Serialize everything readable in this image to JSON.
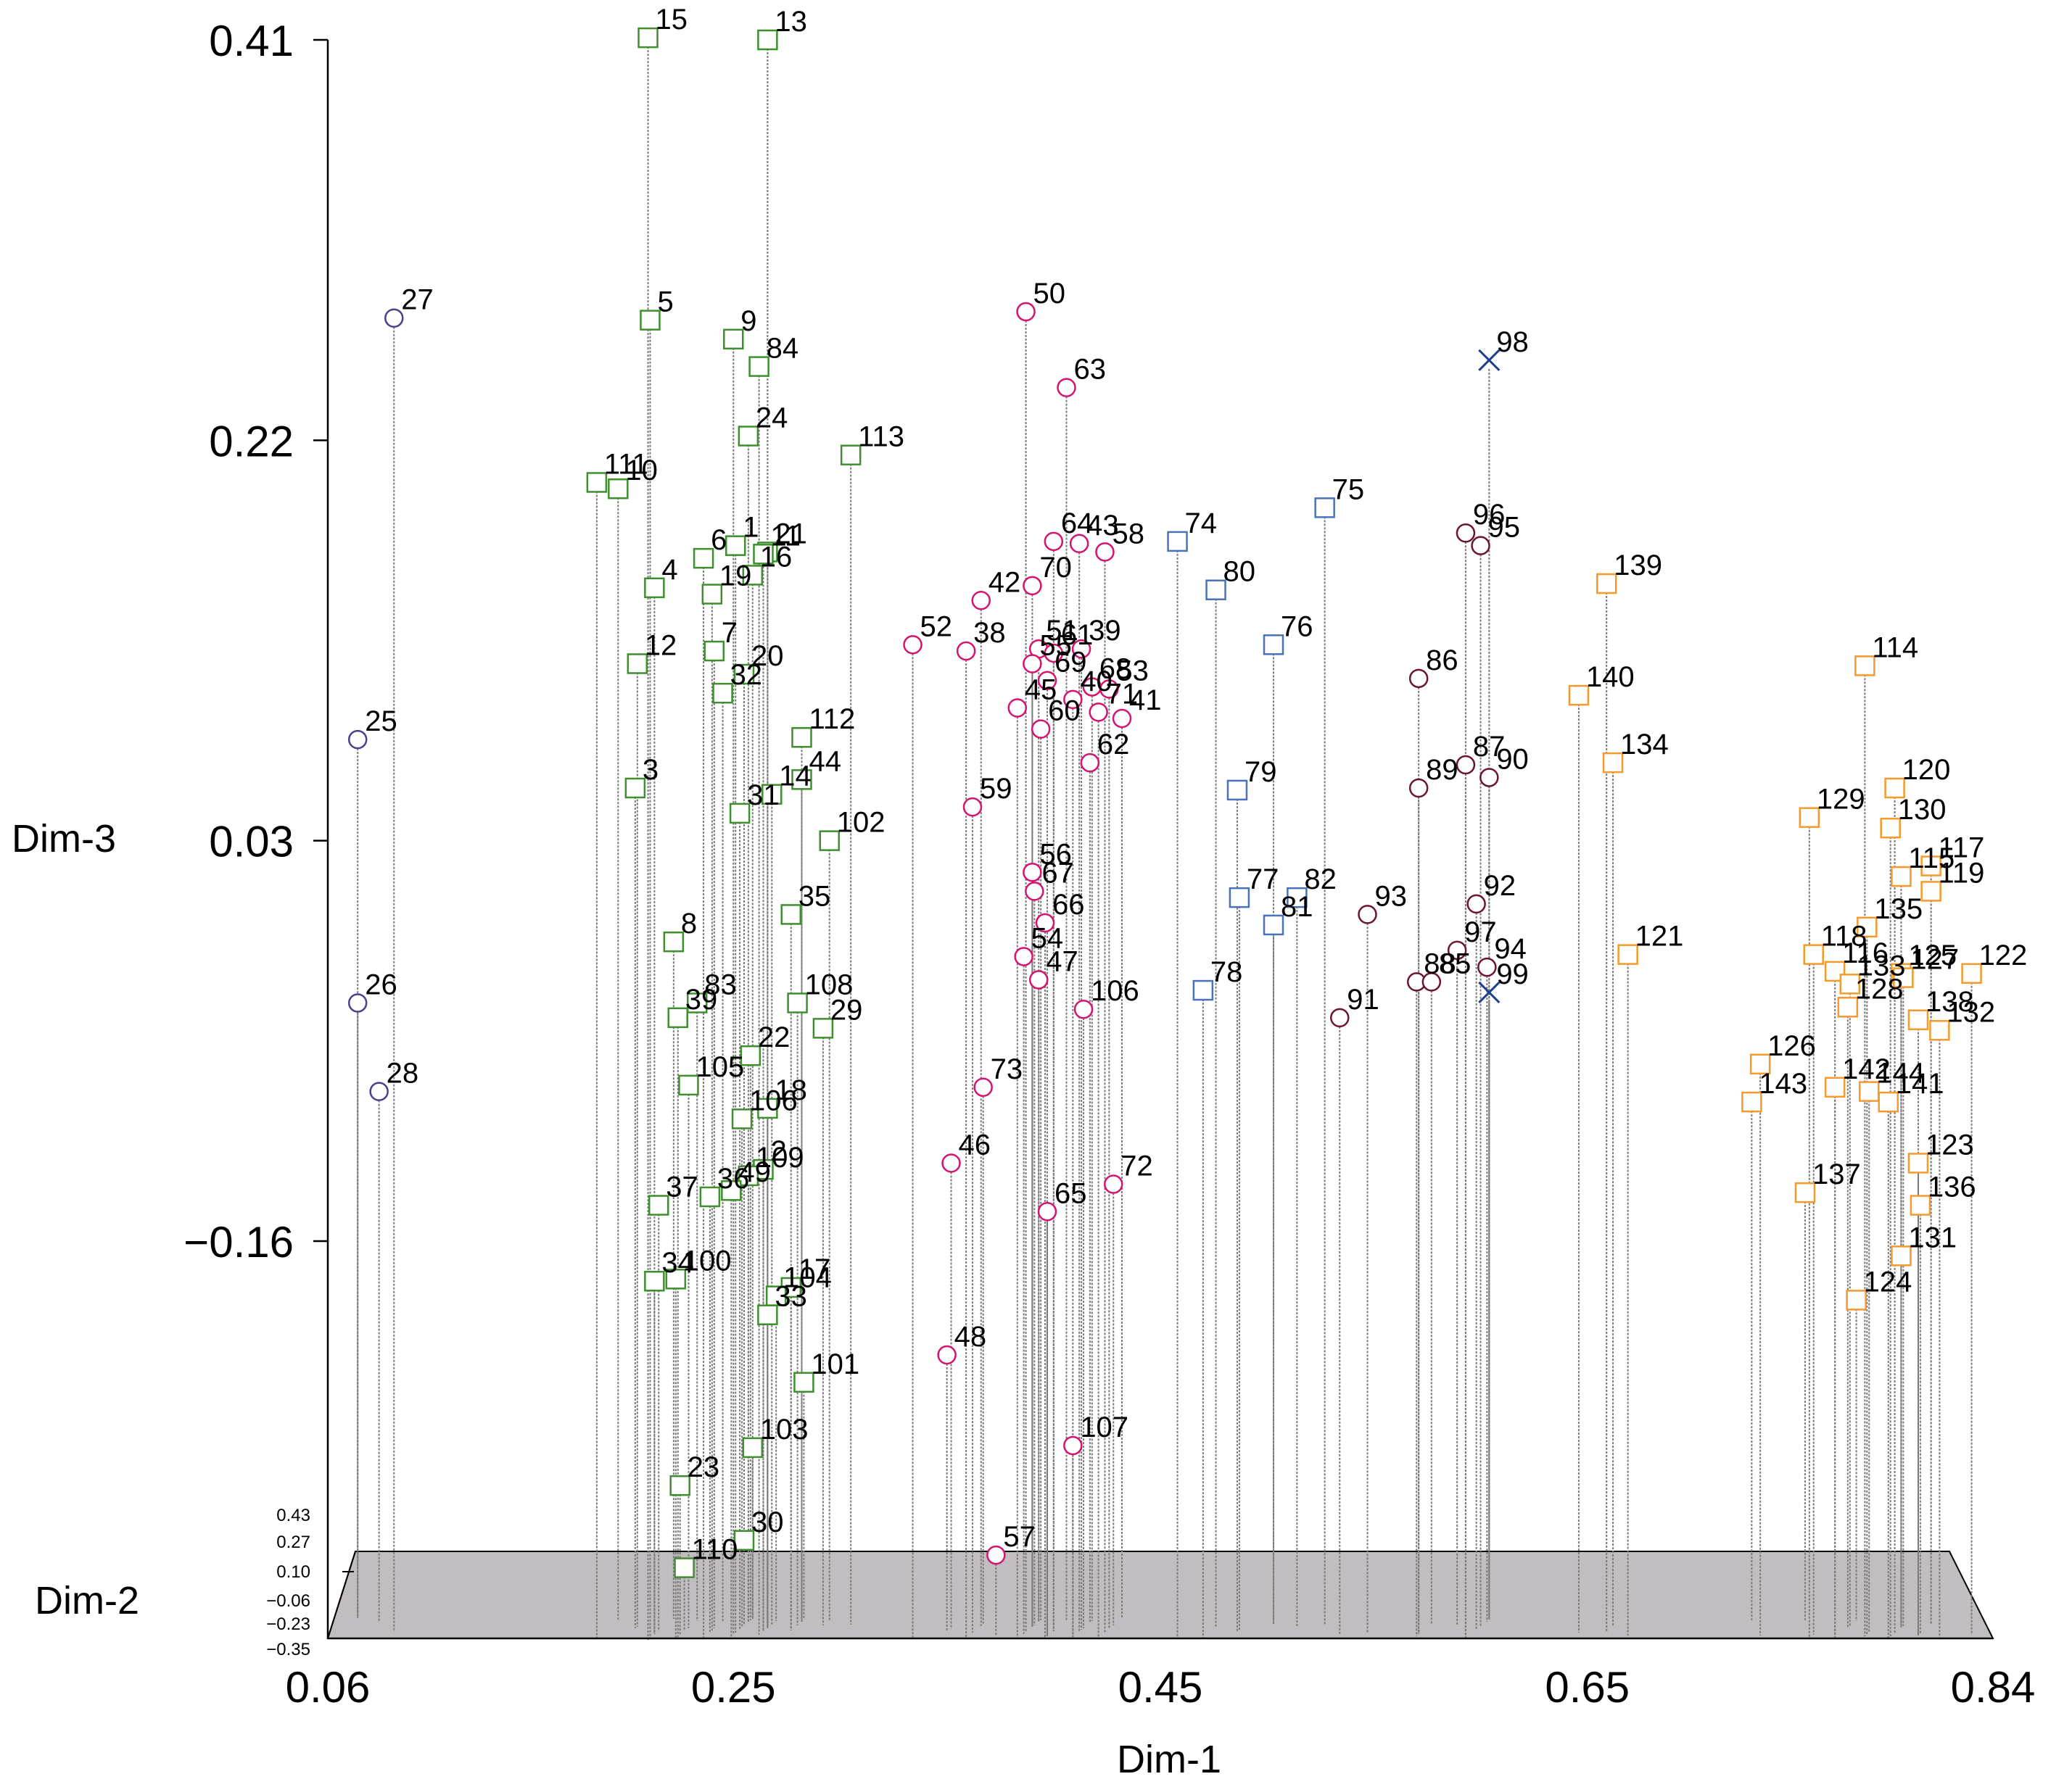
{
  "chart_data": {
    "type": "scatter",
    "subtype": "3d-scatter-with-drop-lines",
    "title": "",
    "xlabel": "Dim-1",
    "ylabel": "Dim-3",
    "zlabel": "Dim-2",
    "xlim": [
      0.06,
      0.84
    ],
    "ylim": [
      -0.35,
      0.41
    ],
    "x_ticks": [
      "0.06",
      "0.25",
      "0.45",
      "0.65",
      "0.84"
    ],
    "y_ticks": [
      "0.41",
      "0.22",
      "0.03",
      "−0.16"
    ],
    "z_ticks": [
      "0.43",
      "0.27",
      "0.10",
      "−0.06",
      "−0.23",
      "−0.35"
    ],
    "floor_color": "#c1bdc1",
    "series": [
      {
        "marker": "circle",
        "color": "#4b3f8f",
        "points": [
          {
            "label": "27",
            "x": 0.091,
            "y": 0.278,
            "z": 0.3
          },
          {
            "label": "25",
            "x": 0.074,
            "y": 0.078,
            "z": 0.3
          },
          {
            "label": "26",
            "x": 0.074,
            "y": -0.047,
            "z": 0.3
          },
          {
            "label": "28",
            "x": 0.084,
            "y": -0.089,
            "z": 0.3
          }
        ]
      },
      {
        "marker": "square",
        "color": "#3f8f2f",
        "points": [
          {
            "label": "15",
            "x": 0.21,
            "y": 0.411,
            "z": 0.1
          },
          {
            "label": "13",
            "x": 0.266,
            "y": 0.41,
            "z": 0.1
          },
          {
            "label": "5",
            "x": 0.211,
            "y": 0.277,
            "z": 0.1
          },
          {
            "label": "9",
            "x": 0.25,
            "y": 0.268,
            "z": 0.1
          },
          {
            "label": "84",
            "x": 0.262,
            "y": 0.255,
            "z": 0.1
          },
          {
            "label": "24",
            "x": 0.257,
            "y": 0.222,
            "z": 0.1
          },
          {
            "label": "113",
            "x": 0.305,
            "y": 0.213,
            "z": 0.1
          },
          {
            "label": "111",
            "x": 0.186,
            "y": 0.2,
            "z": 0.1
          },
          {
            "label": "10",
            "x": 0.196,
            "y": 0.197,
            "z": 0.1
          },
          {
            "label": "6",
            "x": 0.236,
            "y": 0.164,
            "z": 0.1
          },
          {
            "label": "1",
            "x": 0.251,
            "y": 0.17,
            "z": 0.1
          },
          {
            "label": "21",
            "x": 0.266,
            "y": 0.167,
            "z": 0.1
          },
          {
            "label": "11",
            "x": 0.264,
            "y": 0.166,
            "z": 0.1
          },
          {
            "label": "4",
            "x": 0.213,
            "y": 0.15,
            "z": 0.1
          },
          {
            "label": "19",
            "x": 0.24,
            "y": 0.147,
            "z": 0.1
          },
          {
            "label": "16",
            "x": 0.259,
            "y": 0.156,
            "z": 0.1
          },
          {
            "label": "7",
            "x": 0.241,
            "y": 0.12,
            "z": 0.1
          },
          {
            "label": "12",
            "x": 0.205,
            "y": 0.114,
            "z": 0.1
          },
          {
            "label": "20",
            "x": 0.255,
            "y": 0.109,
            "z": 0.1
          },
          {
            "label": "32",
            "x": 0.245,
            "y": 0.1,
            "z": 0.1
          },
          {
            "label": "112",
            "x": 0.282,
            "y": 0.079,
            "z": 0.1
          },
          {
            "label": "3",
            "x": 0.204,
            "y": 0.055,
            "z": 0.1
          },
          {
            "label": "14",
            "x": 0.268,
            "y": 0.052,
            "z": 0.1
          },
          {
            "label": "44",
            "x": 0.282,
            "y": 0.059,
            "z": 0.1
          },
          {
            "label": "31",
            "x": 0.253,
            "y": 0.043,
            "z": 0.1
          },
          {
            "label": "102",
            "x": 0.295,
            "y": 0.03,
            "z": 0.1
          },
          {
            "label": "35",
            "x": 0.277,
            "y": -0.005,
            "z": 0.1
          },
          {
            "label": "8",
            "x": 0.222,
            "y": -0.018,
            "z": 0.1
          },
          {
            "label": "83",
            "x": 0.233,
            "y": -0.047,
            "z": 0.1
          },
          {
            "label": "39",
            "x": 0.224,
            "y": -0.054,
            "z": 0.1
          },
          {
            "label": "108",
            "x": 0.28,
            "y": -0.047,
            "z": 0.1
          },
          {
            "label": "29",
            "x": 0.292,
            "y": -0.059,
            "z": 0.1
          },
          {
            "label": "22",
            "x": 0.258,
            "y": -0.072,
            "z": 0.1
          },
          {
            "label": "105",
            "x": 0.229,
            "y": -0.086,
            "z": 0.1
          },
          {
            "label": "106",
            "x": 0.254,
            "y": -0.102,
            "z": 0.1
          },
          {
            "label": "18",
            "x": 0.266,
            "y": -0.097,
            "z": 0.1
          },
          {
            "label": "2",
            "x": 0.264,
            "y": -0.126,
            "z": 0.1
          },
          {
            "label": "109",
            "x": 0.257,
            "y": -0.129,
            "z": 0.1
          },
          {
            "label": "49",
            "x": 0.249,
            "y": -0.136,
            "z": 0.1
          },
          {
            "label": "37",
            "x": 0.215,
            "y": -0.143,
            "z": 0.1
          },
          {
            "label": "36",
            "x": 0.239,
            "y": -0.139,
            "z": 0.1
          },
          {
            "label": "34",
            "x": 0.213,
            "y": -0.179,
            "z": 0.1
          },
          {
            "label": "100",
            "x": 0.223,
            "y": -0.178,
            "z": 0.1
          },
          {
            "label": "17",
            "x": 0.277,
            "y": -0.182,
            "z": 0.1
          },
          {
            "label": "104",
            "x": 0.27,
            "y": -0.186,
            "z": 0.1
          },
          {
            "label": "33",
            "x": 0.266,
            "y": -0.195,
            "z": 0.1
          },
          {
            "label": "101",
            "x": 0.283,
            "y": -0.227,
            "z": 0.1
          },
          {
            "label": "103",
            "x": 0.259,
            "y": -0.258,
            "z": 0.1
          },
          {
            "label": "23",
            "x": 0.225,
            "y": -0.276,
            "z": 0.1
          },
          {
            "label": "30",
            "x": 0.255,
            "y": -0.302,
            "z": 0.1
          },
          {
            "label": "110",
            "x": 0.227,
            "y": -0.315,
            "z": 0.1
          }
        ]
      },
      {
        "marker": "circle",
        "color": "#d4146f",
        "points": [
          {
            "label": "50",
            "x": 0.387,
            "y": 0.281,
            "z": 0.1
          },
          {
            "label": "63",
            "x": 0.406,
            "y": 0.245,
            "z": 0.1
          },
          {
            "label": "64",
            "x": 0.4,
            "y": 0.172,
            "z": 0.1
          },
          {
            "label": "43",
            "x": 0.412,
            "y": 0.171,
            "z": 0.1
          },
          {
            "label": "58",
            "x": 0.424,
            "y": 0.167,
            "z": 0.1
          },
          {
            "label": "70",
            "x": 0.39,
            "y": 0.151,
            "z": 0.1
          },
          {
            "label": "42",
            "x": 0.366,
            "y": 0.144,
            "z": 0.1
          },
          {
            "label": "52",
            "x": 0.334,
            "y": 0.123,
            "z": 0.1
          },
          {
            "label": "38",
            "x": 0.359,
            "y": 0.12,
            "z": 0.1
          },
          {
            "label": "51",
            "x": 0.393,
            "y": 0.121,
            "z": 0.1
          },
          {
            "label": "61",
            "x": 0.4,
            "y": 0.119,
            "z": 0.1
          },
          {
            "label": "39",
            "x": 0.413,
            "y": 0.121,
            "z": 0.1
          },
          {
            "label": "55",
            "x": 0.39,
            "y": 0.114,
            "z": 0.1
          },
          {
            "label": "69",
            "x": 0.397,
            "y": 0.106,
            "z": 0.1
          },
          {
            "label": "68",
            "x": 0.418,
            "y": 0.103,
            "z": 0.1
          },
          {
            "label": "53",
            "x": 0.426,
            "y": 0.102,
            "z": 0.1
          },
          {
            "label": "45",
            "x": 0.383,
            "y": 0.093,
            "z": 0.1
          },
          {
            "label": "40",
            "x": 0.409,
            "y": 0.097,
            "z": 0.1
          },
          {
            "label": "71",
            "x": 0.421,
            "y": 0.091,
            "z": 0.1
          },
          {
            "label": "41",
            "x": 0.432,
            "y": 0.088,
            "z": 0.1
          },
          {
            "label": "60",
            "x": 0.394,
            "y": 0.083,
            "z": 0.1
          },
          {
            "label": "62",
            "x": 0.417,
            "y": 0.067,
            "z": 0.1
          },
          {
            "label": "59",
            "x": 0.362,
            "y": 0.046,
            "z": 0.1
          },
          {
            "label": "56",
            "x": 0.39,
            "y": 0.015,
            "z": 0.1
          },
          {
            "label": "67",
            "x": 0.391,
            "y": 0.006,
            "z": 0.1
          },
          {
            "label": "66",
            "x": 0.396,
            "y": -0.009,
            "z": 0.1
          },
          {
            "label": "54",
            "x": 0.386,
            "y": -0.025,
            "z": 0.1
          },
          {
            "label": "47",
            "x": 0.393,
            "y": -0.036,
            "z": 0.1
          },
          {
            "label": "106",
            "x": 0.414,
            "y": -0.05,
            "z": 0.1
          },
          {
            "label": "73",
            "x": 0.367,
            "y": -0.087,
            "z": 0.1
          },
          {
            "label": "46",
            "x": 0.352,
            "y": -0.123,
            "z": 0.1
          },
          {
            "label": "72",
            "x": 0.428,
            "y": -0.133,
            "z": 0.1
          },
          {
            "label": "65",
            "x": 0.397,
            "y": -0.146,
            "z": 0.1
          },
          {
            "label": "48",
            "x": 0.35,
            "y": -0.214,
            "z": 0.1
          },
          {
            "label": "107",
            "x": 0.409,
            "y": -0.257,
            "z": 0.1
          },
          {
            "label": "57",
            "x": 0.373,
            "y": -0.309,
            "z": 0.1
          }
        ]
      },
      {
        "marker": "square",
        "color": "#4a72b8",
        "points": [
          {
            "label": "74",
            "x": 0.458,
            "y": 0.172,
            "z": 0.1
          },
          {
            "label": "75",
            "x": 0.527,
            "y": 0.188,
            "z": 0.1
          },
          {
            "label": "80",
            "x": 0.476,
            "y": 0.149,
            "z": 0.1
          },
          {
            "label": "76",
            "x": 0.503,
            "y": 0.123,
            "z": 0.1
          },
          {
            "label": "79",
            "x": 0.486,
            "y": 0.054,
            "z": 0.1
          },
          {
            "label": "77",
            "x": 0.487,
            "y": 0.003,
            "z": 0.1
          },
          {
            "label": "82",
            "x": 0.514,
            "y": 0.003,
            "z": 0.1
          },
          {
            "label": "81",
            "x": 0.503,
            "y": -0.01,
            "z": 0.1
          },
          {
            "label": "78",
            "x": 0.47,
            "y": -0.041,
            "z": 0.1
          }
        ]
      },
      {
        "marker": "circle",
        "color": "#6b1436",
        "points": [
          {
            "label": "96",
            "x": 0.593,
            "y": 0.176,
            "z": 0.1
          },
          {
            "label": "95",
            "x": 0.6,
            "y": 0.17,
            "z": 0.1
          },
          {
            "label": "86",
            "x": 0.571,
            "y": 0.107,
            "z": 0.1
          },
          {
            "label": "89",
            "x": 0.571,
            "y": 0.055,
            "z": 0.1
          },
          {
            "label": "87",
            "x": 0.593,
            "y": 0.066,
            "z": 0.1
          },
          {
            "label": "90",
            "x": 0.604,
            "y": 0.06,
            "z": 0.1
          },
          {
            "label": "93",
            "x": 0.547,
            "y": -0.005,
            "z": 0.1
          },
          {
            "label": "92",
            "x": 0.598,
            "y": 0.0,
            "z": 0.1
          },
          {
            "label": "97",
            "x": 0.589,
            "y": -0.022,
            "z": 0.1
          },
          {
            "label": "94",
            "x": 0.603,
            "y": -0.03,
            "z": 0.1
          },
          {
            "label": "88",
            "x": 0.57,
            "y": -0.037,
            "z": 0.1
          },
          {
            "label": "85",
            "x": 0.577,
            "y": -0.037,
            "z": 0.1
          },
          {
            "label": "91",
            "x": 0.534,
            "y": -0.054,
            "z": 0.1
          }
        ]
      },
      {
        "marker": "cross",
        "color": "#203f8c",
        "points": [
          {
            "label": "98",
            "x": 0.604,
            "y": 0.258,
            "z": 0.1
          },
          {
            "label": "99",
            "x": 0.604,
            "y": -0.042,
            "z": 0.1
          }
        ]
      },
      {
        "marker": "square",
        "color": "#f59a2d",
        "points": [
          {
            "label": "139",
            "x": 0.659,
            "y": 0.152,
            "z": 0.1
          },
          {
            "label": "140",
            "x": 0.646,
            "y": 0.099,
            "z": 0.1
          },
          {
            "label": "134",
            "x": 0.662,
            "y": 0.067,
            "z": 0.1
          },
          {
            "label": "114",
            "x": 0.78,
            "y": 0.113,
            "z": 0.1
          },
          {
            "label": "120",
            "x": 0.794,
            "y": 0.055,
            "z": 0.1
          },
          {
            "label": "130",
            "x": 0.792,
            "y": 0.036,
            "z": 0.1
          },
          {
            "label": "129",
            "x": 0.754,
            "y": 0.041,
            "z": 0.1
          },
          {
            "label": "117",
            "x": 0.811,
            "y": 0.018,
            "z": 0.1
          },
          {
            "label": "115",
            "x": 0.797,
            "y": 0.013,
            "z": 0.1
          },
          {
            "label": "119",
            "x": 0.811,
            "y": 0.006,
            "z": 0.1
          },
          {
            "label": "135",
            "x": 0.781,
            "y": -0.011,
            "z": 0.1
          },
          {
            "label": "121",
            "x": 0.669,
            "y": -0.024,
            "z": 0.1
          },
          {
            "label": "118",
            "x": 0.756,
            "y": -0.024,
            "z": 0.1
          },
          {
            "label": "116",
            "x": 0.766,
            "y": -0.032,
            "z": 0.1
          },
          {
            "label": "122",
            "x": 0.83,
            "y": -0.033,
            "z": 0.1
          },
          {
            "label": "125",
            "x": 0.797,
            "y": -0.033,
            "z": 0.1
          },
          {
            "label": "127",
            "x": 0.798,
            "y": -0.035,
            "z": 0.1
          },
          {
            "label": "133",
            "x": 0.773,
            "y": -0.038,
            "z": 0.1
          },
          {
            "label": "128",
            "x": 0.772,
            "y": -0.049,
            "z": 0.1
          },
          {
            "label": "138",
            "x": 0.805,
            "y": -0.055,
            "z": 0.1
          },
          {
            "label": "132",
            "x": 0.815,
            "y": -0.06,
            "z": 0.1
          },
          {
            "label": "126",
            "x": 0.731,
            "y": -0.076,
            "z": 0.1
          },
          {
            "label": "142",
            "x": 0.766,
            "y": -0.087,
            "z": 0.1
          },
          {
            "label": "144",
            "x": 0.782,
            "y": -0.089,
            "z": 0.1
          },
          {
            "label": "143",
            "x": 0.727,
            "y": -0.094,
            "z": 0.1
          },
          {
            "label": "141",
            "x": 0.791,
            "y": -0.094,
            "z": 0.1
          },
          {
            "label": "123",
            "x": 0.805,
            "y": -0.123,
            "z": 0.1
          },
          {
            "label": "137",
            "x": 0.752,
            "y": -0.137,
            "z": 0.1
          },
          {
            "label": "136",
            "x": 0.806,
            "y": -0.143,
            "z": 0.1
          },
          {
            "label": "131",
            "x": 0.797,
            "y": -0.167,
            "z": 0.1
          },
          {
            "label": "124",
            "x": 0.776,
            "y": -0.188,
            "z": 0.1
          }
        ]
      }
    ]
  }
}
